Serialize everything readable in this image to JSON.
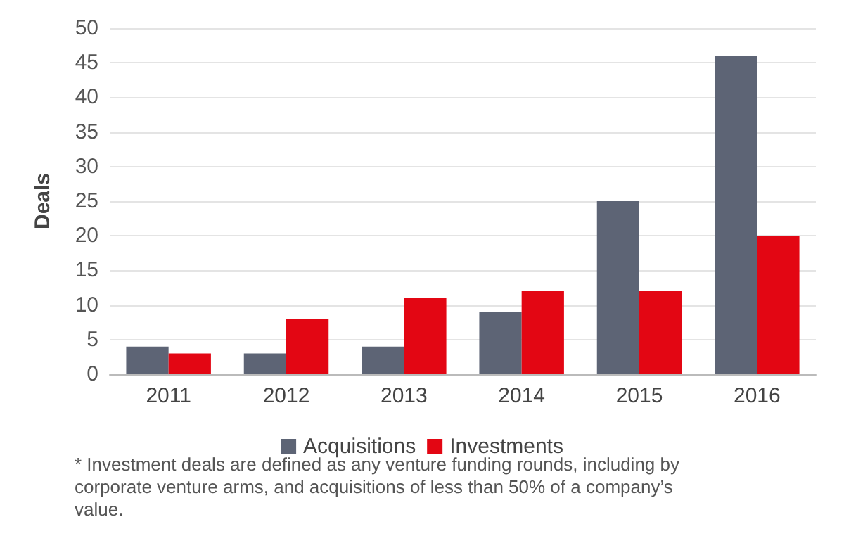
{
  "chart_data": {
    "type": "bar",
    "ylabel": "Deals",
    "categories": [
      "2011",
      "2012",
      "2013",
      "2014",
      "2015",
      "2016"
    ],
    "series": [
      {
        "name": "Acquisitions",
        "color": "#5d6475",
        "values": [
          4,
          3,
          4,
          9,
          25,
          46
        ]
      },
      {
        "name": "Investments",
        "color": "#e30613",
        "values": [
          3,
          8,
          11,
          12,
          12,
          20
        ]
      }
    ],
    "ylim": [
      0,
      50
    ],
    "yticks": [
      0,
      5,
      10,
      15,
      20,
      25,
      30,
      35,
      40,
      45,
      50
    ],
    "grid": "y",
    "legend": "bottom",
    "annotations": [
      "* Investment deals are defined as any venture funding rounds, including by corporate venture arms, and acquisitions of less than 50% of a company’s value."
    ]
  }
}
